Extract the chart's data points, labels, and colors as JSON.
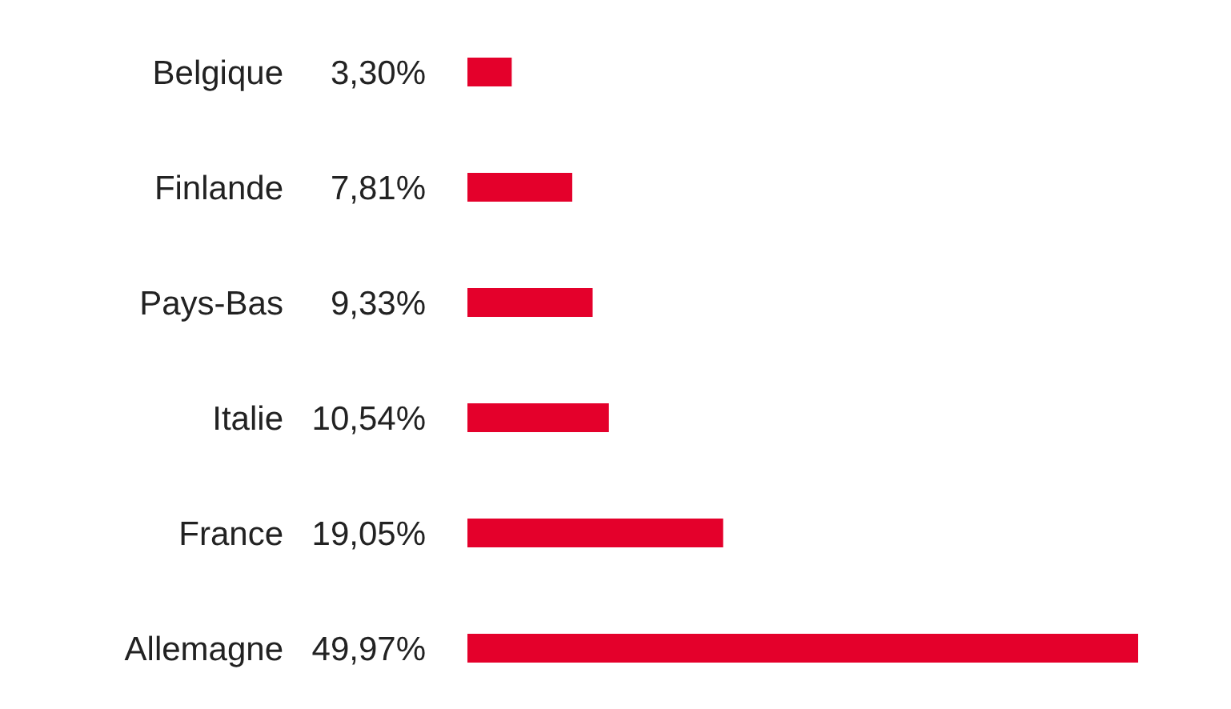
{
  "chart_data": {
    "type": "bar",
    "orientation": "horizontal",
    "categories": [
      "Belgique",
      "Finlande",
      "Pays-Bas",
      "Italie",
      "France",
      "Allemagne"
    ],
    "values": [
      3.3,
      7.81,
      9.33,
      10.54,
      19.05,
      49.97
    ],
    "value_labels": [
      "3,30%",
      "7,81%",
      "9,33%",
      "10,54%",
      "19,05%",
      "49,97%"
    ],
    "color": "#e4002b"
  }
}
